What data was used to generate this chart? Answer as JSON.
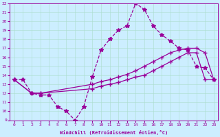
{
  "xlabel": "Windchill (Refroidissement éolien,°C)",
  "background_color": "#cceeff",
  "line_color": "#990099",
  "xlim": [
    -0.5,
    23.5
  ],
  "ylim": [
    9,
    22
  ],
  "x_ticks": [
    0,
    1,
    2,
    3,
    4,
    5,
    6,
    7,
    8,
    9,
    10,
    11,
    12,
    13,
    14,
    15,
    16,
    17,
    18,
    19,
    20,
    21,
    22,
    23
  ],
  "y_ticks": [
    9,
    10,
    11,
    12,
    13,
    14,
    15,
    16,
    17,
    18,
    19,
    20,
    21,
    22
  ],
  "series": [
    {
      "x": [
        0,
        1,
        2,
        3,
        4,
        5,
        6,
        7,
        8,
        9,
        10,
        11,
        12,
        13,
        14,
        15,
        16,
        17,
        18,
        19,
        20,
        21,
        22,
        23
      ],
      "y": [
        13.5,
        13.5,
        12.0,
        11.8,
        11.8,
        10.5,
        10.0,
        9.0,
        10.5,
        13.8,
        16.8,
        18.0,
        19.0,
        19.5,
        22.0,
        21.3,
        19.5,
        18.5,
        17.8,
        17.0,
        16.8,
        15.0,
        14.8,
        13.5
      ],
      "marker": "*",
      "markersize": 4,
      "linestyle": "--",
      "linewidth": 0.9
    },
    {
      "x": [
        0,
        2,
        3,
        9,
        10,
        11,
        12,
        13,
        14,
        15,
        16,
        17,
        18,
        19,
        20,
        21,
        22,
        23
      ],
      "y": [
        13.5,
        12.0,
        12.0,
        13.0,
        13.3,
        13.5,
        13.8,
        14.1,
        14.5,
        15.0,
        15.5,
        16.0,
        16.5,
        16.8,
        17.0,
        17.0,
        16.5,
        13.5
      ],
      "marker": "+",
      "markersize": 4,
      "linestyle": "-",
      "linewidth": 0.9
    },
    {
      "x": [
        0,
        2,
        3,
        9,
        10,
        11,
        12,
        13,
        14,
        15,
        16,
        17,
        18,
        19,
        20,
        21,
        22,
        23
      ],
      "y": [
        13.5,
        12.0,
        12.0,
        12.5,
        12.8,
        13.0,
        13.2,
        13.5,
        13.8,
        14.0,
        14.5,
        15.0,
        15.5,
        16.0,
        16.5,
        16.5,
        13.5,
        13.5
      ],
      "marker": "+",
      "markersize": 4,
      "linestyle": "-",
      "linewidth": 0.9
    }
  ]
}
